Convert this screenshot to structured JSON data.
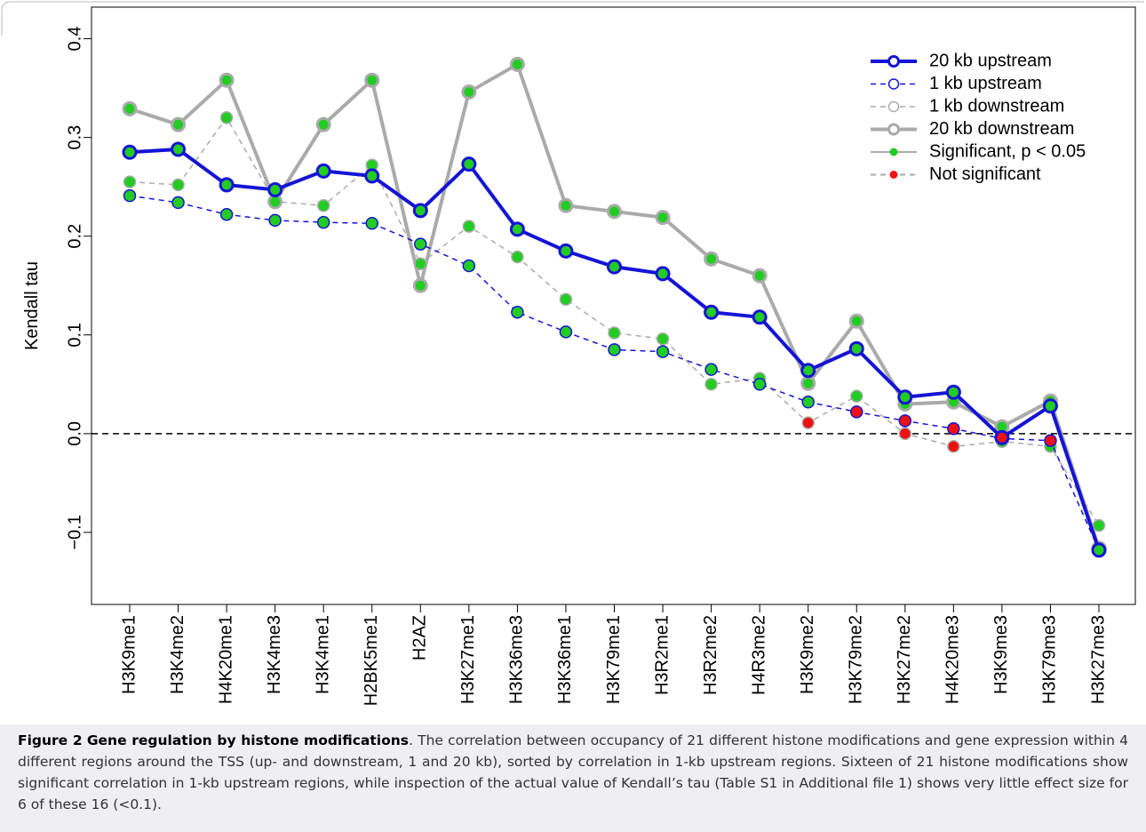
{
  "chart_data": {
    "type": "line",
    "y_label": "Kendall tau",
    "categories": [
      "H3K9me1",
      "H3K4me2",
      "H4K20me1",
      "H3K4me3",
      "H3K4me1",
      "H2BK5me1",
      "H2AZ",
      "H3K27me1",
      "H3K36me3",
      "H3K36me1",
      "H3K79me1",
      "H3R2me1",
      "H3R2me2",
      "H4R3me2",
      "H3K9me2",
      "H3K79me2",
      "H3K27me2",
      "H4K20me3",
      "H3K9me3",
      "H3K79me3",
      "H3K27me3"
    ],
    "ylim": [
      -0.173,
      0.432
    ],
    "yticks": [
      {
        "value": -0.1,
        "label": "−0.1"
      },
      {
        "value": 0,
        "label": "0.0"
      },
      0.1,
      0.2,
      0.3,
      0.4
    ],
    "hline": 0,
    "legend": "top-right",
    "series": [
      {
        "name": "20 kb upstream",
        "color": "#1414d6",
        "dash": false,
        "width": 4,
        "values": [
          0.285,
          0.288,
          0.252,
          0.247,
          0.266,
          0.261,
          0.226,
          0.273,
          0.207,
          0.185,
          0.169,
          0.162,
          0.123,
          0.118,
          0.064,
          0.086,
          0.037,
          0.042,
          -0.004,
          0.028,
          -0.118
        ],
        "significant": [
          true,
          true,
          true,
          true,
          true,
          true,
          true,
          true,
          true,
          true,
          true,
          true,
          true,
          true,
          true,
          true,
          true,
          true,
          false,
          true,
          true
        ]
      },
      {
        "name": "1 kb upstream",
        "color": "#1414d6",
        "dash": true,
        "width": 1.5,
        "values": [
          0.241,
          0.234,
          0.222,
          0.216,
          0.214,
          0.213,
          0.192,
          0.17,
          0.123,
          0.103,
          0.085,
          0.083,
          0.065,
          0.05,
          0.032,
          0.022,
          0.013,
          0.005,
          -0.005,
          -0.007,
          -0.118
        ],
        "significant": [
          true,
          true,
          true,
          true,
          true,
          true,
          true,
          true,
          true,
          true,
          true,
          true,
          true,
          true,
          true,
          false,
          false,
          false,
          false,
          false,
          true
        ]
      },
      {
        "name": "1 kb downstream",
        "color": "#aaaaaa",
        "dash": true,
        "width": 1.5,
        "values": [
          0.255,
          0.252,
          0.32,
          0.235,
          0.231,
          0.272,
          0.172,
          0.21,
          0.179,
          0.136,
          0.102,
          0.096,
          0.05,
          0.056,
          0.011,
          0.038,
          0.0,
          -0.013,
          -0.008,
          -0.013,
          -0.093
        ],
        "significant": [
          true,
          true,
          true,
          true,
          true,
          true,
          true,
          true,
          true,
          true,
          true,
          true,
          true,
          true,
          false,
          true,
          false,
          false,
          true,
          true,
          true
        ]
      },
      {
        "name": "20 kb downstream",
        "color": "#aaaaaa",
        "dash": false,
        "width": 4,
        "values": [
          0.329,
          0.313,
          0.358,
          0.235,
          0.313,
          0.358,
          0.15,
          0.346,
          0.374,
          0.231,
          0.225,
          0.219,
          0.177,
          0.16,
          0.051,
          0.114,
          0.03,
          0.032,
          0.007,
          0.033,
          -0.116
        ],
        "significant": [
          true,
          true,
          true,
          true,
          true,
          true,
          true,
          true,
          true,
          true,
          true,
          true,
          true,
          true,
          true,
          true,
          true,
          true,
          true,
          true,
          true
        ]
      }
    ],
    "significance_legend": [
      {
        "name": "Significant, p < 0.05",
        "color": "#22cc22"
      },
      {
        "name": "Not significant",
        "color": "#ee1111"
      }
    ]
  },
  "caption": {
    "label": "Figure 2",
    "title": "Gene regulation by histone modifications",
    "text": ". The correlation between occupancy of 21 different histone modifications and gene expression within 4 different regions around the TSS (up- and downstream, 1 and 20 kb), sorted by correlation in 1-kb upstream regions. Sixteen of 21 histone modifications show significant correlation in 1-kb upstream regions, while inspection of the actual value of Kendall’s tau (Table S1 in Additional file 1) shows very little effect size for 6 of these 16 (<0.1)."
  }
}
